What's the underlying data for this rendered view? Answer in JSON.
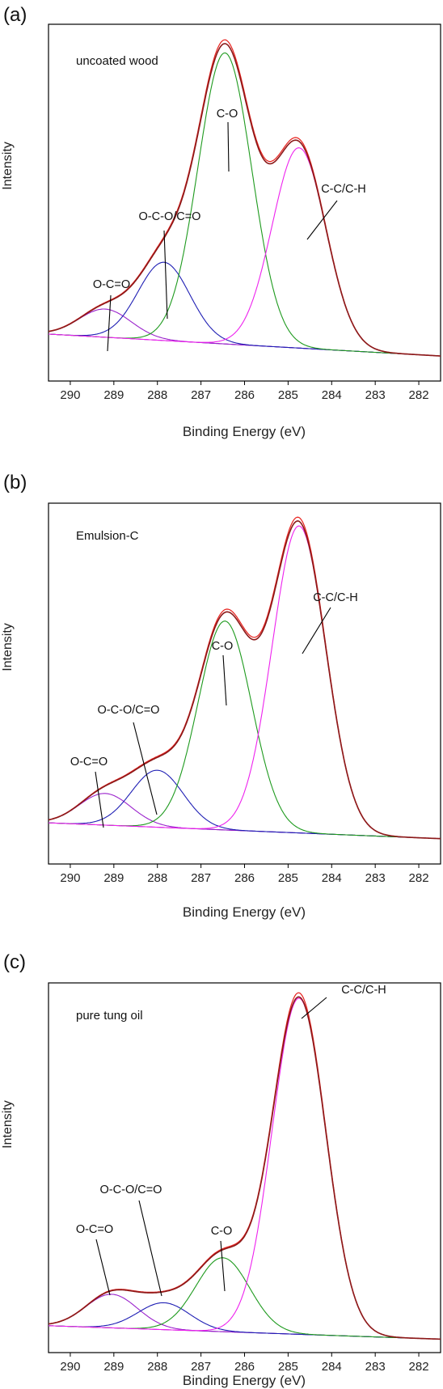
{
  "colors": {
    "envelope": "#8b1a1a",
    "envelope_fit": "#e8201c",
    "C-C/C-H": "#ee22ee",
    "C-O": "#1e9a1e",
    "O-C-O/C=O": "#1f1fb4",
    "O-C=O": "#9a22cc",
    "background": "#8a28b4"
  },
  "chart_data": [
    {
      "type": "line",
      "panel_label": "(a)",
      "title": "uncoated wood",
      "xlabel": "Binding Energy (eV)",
      "ylabel": "Intensity",
      "xlim": [
        290.5,
        281.5
      ],
      "x_reversed": true,
      "ylim": [
        -0.08,
        1.06
      ],
      "xticks": [
        290,
        289,
        288,
        287,
        286,
        285,
        284,
        283,
        282
      ],
      "background_start": 0.07,
      "background_end": 0.0,
      "peaks": [
        {
          "name": "O-C=O",
          "center": 289.2,
          "height": 0.09,
          "fwhm": 1.4
        },
        {
          "name": "O-C-O/C=O",
          "center": 287.85,
          "height": 0.25,
          "fwhm": 1.4
        },
        {
          "name": "C-O",
          "center": 286.45,
          "height": 0.93,
          "fwhm": 1.45
        },
        {
          "name": "C-C/C-H",
          "center": 284.75,
          "height": 0.64,
          "fwhm": 1.45
        }
      ],
      "annotations": [
        {
          "text": "C-O",
          "x": 286.45
        },
        {
          "text": "C-C/C-H",
          "x": 284.75
        },
        {
          "text": "O-C-O/C=O",
          "x": 287.85
        },
        {
          "text": "O-C=O",
          "x": 289.2
        }
      ]
    },
    {
      "type": "line",
      "panel_label": "(b)",
      "title": "Emulsion-C",
      "xlabel": "Binding Energy (eV)",
      "ylabel": "Intensity",
      "xlim": [
        290.5,
        281.5
      ],
      "x_reversed": true,
      "ylim": [
        -0.08,
        1.06
      ],
      "xticks": [
        290,
        289,
        288,
        287,
        286,
        285,
        284,
        283,
        282
      ],
      "background_start": 0.05,
      "background_end": 0.0,
      "peaks": [
        {
          "name": "O-C=O",
          "center": 289.2,
          "height": 0.1,
          "fwhm": 1.4
        },
        {
          "name": "O-C-O/C=O",
          "center": 288.0,
          "height": 0.18,
          "fwhm": 1.4
        },
        {
          "name": "C-O",
          "center": 286.45,
          "height": 0.66,
          "fwhm": 1.45
        },
        {
          "name": "C-C/C-H",
          "center": 284.75,
          "height": 0.97,
          "fwhm": 1.45
        }
      ],
      "annotations": [
        {
          "text": "C-C/C-H",
          "x": 284.75
        },
        {
          "text": "C-O",
          "x": 286.45
        },
        {
          "text": "O-C-O/C=O",
          "x": 288.0
        },
        {
          "text": "O-C=O",
          "x": 289.2
        }
      ]
    },
    {
      "type": "line",
      "panel_label": "(c)",
      "title": "pure tung oil",
      "xlabel": "Binding Energy (eV)",
      "ylabel": "Intensity",
      "xlim": [
        290.5,
        281.5
      ],
      "x_reversed": true,
      "ylim": [
        -0.04,
        1.06
      ],
      "xticks": [
        290,
        289,
        288,
        287,
        286,
        285,
        284,
        283,
        282
      ],
      "background_start": 0.04,
      "background_end": 0.0,
      "peaks": [
        {
          "name": "O-C=O",
          "center": 289.05,
          "height": 0.1,
          "fwhm": 1.4
        },
        {
          "name": "O-C-O/C=O",
          "center": 287.85,
          "height": 0.08,
          "fwhm": 1.4
        },
        {
          "name": "C-O",
          "center": 286.5,
          "height": 0.22,
          "fwhm": 1.45
        },
        {
          "name": "C-C/C-H",
          "center": 284.75,
          "height": 1.0,
          "fwhm": 1.45
        }
      ],
      "annotations": [
        {
          "text": "C-C/C-H",
          "x": 284.75
        },
        {
          "text": "C-O",
          "x": 286.5
        },
        {
          "text": "O-C-O/C=O",
          "x": 287.85
        },
        {
          "text": "O-C=O",
          "x": 289.05
        }
      ]
    }
  ]
}
